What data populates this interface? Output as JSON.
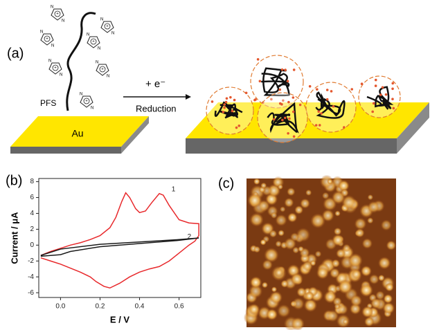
{
  "panels": {
    "a": "(a)",
    "b": "(b)",
    "c": "(c)"
  },
  "scheme": {
    "polymer": "PFS",
    "cation_n": "N",
    "cation_plus": "+",
    "electron": "+ e⁻",
    "reaction": "Reduction",
    "substrate": "Au"
  },
  "chart_data": {
    "type": "line",
    "x_label": "E / V",
    "y_label": "Current / μA",
    "xlim": [
      -0.11,
      0.71
    ],
    "ylim": [
      -6.6,
      8.4
    ],
    "xticks": [
      {
        "value": 0,
        "label": "0.0"
      },
      {
        "value": 0.2,
        "label": "0.2"
      },
      {
        "value": 0.4,
        "label": "0.4"
      },
      {
        "value": 0.6,
        "label": "0.6"
      }
    ],
    "yticks": [
      -6,
      -4,
      -2,
      0,
      2,
      4,
      6,
      8
    ],
    "series": [
      {
        "name": "1",
        "color": "#e8282b",
        "x": [
          -0.1,
          -0.05,
          0,
          0.05,
          0.1,
          0.15,
          0.2,
          0.25,
          0.28,
          0.31,
          0.33,
          0.35,
          0.38,
          0.4,
          0.43,
          0.46,
          0.5,
          0.52,
          0.55,
          0.6,
          0.65,
          0.7,
          0.7,
          0.68,
          0.65,
          0.6,
          0.55,
          0.5,
          0.45,
          0.4,
          0.35,
          0.3,
          0.25,
          0.22,
          0.18,
          0.15,
          0.1,
          0.05,
          0,
          -0.05,
          -0.1
        ],
        "values": [
          -1.3,
          -0.8,
          -0.4,
          0,
          0.3,
          0.7,
          1.2,
          2.2,
          3.5,
          5.5,
          6.6,
          6,
          4.6,
          4.1,
          4.3,
          5.3,
          6.5,
          6.3,
          5,
          3.2,
          2.8,
          2.7,
          1.2,
          0.5,
          0,
          -1,
          -2,
          -2.7,
          -3,
          -3.4,
          -4,
          -4.8,
          -5.4,
          -5.2,
          -4.6,
          -4,
          -3.4,
          -2.9,
          -2.4,
          -2,
          -1.6
        ]
      },
      {
        "name": "2",
        "color": "#1a1a1a",
        "x": [
          -0.1,
          0,
          0.2,
          0.4,
          0.6,
          0.7,
          0.6,
          0.4,
          0.2,
          0.05,
          0,
          -0.1
        ],
        "values": [
          -1.3,
          -0.5,
          0.1,
          0.4,
          0.7,
          0.9,
          0.6,
          0.2,
          -0.2,
          -0.8,
          -1.2,
          -1.4
        ]
      }
    ]
  }
}
